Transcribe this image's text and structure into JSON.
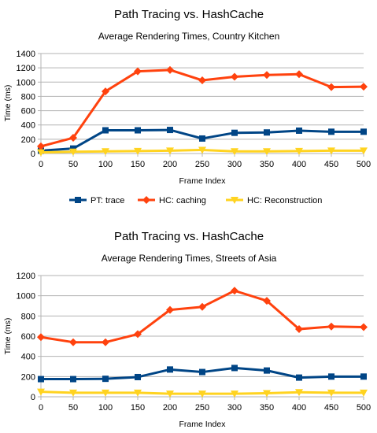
{
  "chart_data": [
    {
      "type": "line",
      "title": "Path Tracing vs. HashCache",
      "subtitle": "Average Rendering Times, Country Kitchen",
      "xlabel": "Frame Index",
      "ylabel": "Time (ms)",
      "x": [
        0,
        50,
        100,
        150,
        200,
        250,
        300,
        350,
        400,
        450,
        500
      ],
      "ylim": [
        0,
        1400
      ],
      "yticks": [
        0,
        200,
        400,
        600,
        800,
        1000,
        1200,
        1400
      ],
      "grid": true,
      "legend": "bottom",
      "series": [
        {
          "name": "PT: trace",
          "color": "#004586",
          "marker": "square",
          "values": [
            40,
            70,
            325,
            325,
            330,
            210,
            290,
            295,
            320,
            305,
            305
          ]
        },
        {
          "name": "HC: caching",
          "color": "#ff420e",
          "marker": "diamond",
          "values": [
            100,
            220,
            870,
            1150,
            1170,
            1025,
            1075,
            1100,
            1110,
            930,
            935
          ]
        },
        {
          "name": "HC: Reconstruction",
          "color": "#ffd320",
          "marker": "triangle-down",
          "values": [
            15,
            25,
            30,
            35,
            40,
            50,
            30,
            30,
            35,
            40,
            40
          ]
        }
      ]
    },
    {
      "type": "line",
      "title": "Path Tracing vs. HashCache",
      "subtitle": "Average Rendering Times, Streets of Asia",
      "xlabel": "Frame Index",
      "ylabel": "Time (ms)",
      "x": [
        0,
        50,
        100,
        150,
        200,
        250,
        300,
        350,
        400,
        450,
        500
      ],
      "ylim": [
        0,
        1200
      ],
      "yticks": [
        0,
        200,
        400,
        600,
        800,
        1000,
        1200
      ],
      "grid": true,
      "legend": "none",
      "series": [
        {
          "name": "PT: trace",
          "color": "#004586",
          "marker": "square",
          "values": [
            175,
            175,
            178,
            195,
            270,
            245,
            285,
            260,
            190,
            200,
            200
          ]
        },
        {
          "name": "HC: caching",
          "color": "#ff420e",
          "marker": "diamond",
          "values": [
            590,
            540,
            540,
            620,
            860,
            890,
            1050,
            950,
            670,
            695,
            690
          ]
        },
        {
          "name": "HC: Reconstruction",
          "color": "#ffd320",
          "marker": "triangle-down",
          "values": [
            50,
            40,
            40,
            40,
            30,
            30,
            30,
            35,
            45,
            40,
            40
          ]
        }
      ]
    }
  ]
}
